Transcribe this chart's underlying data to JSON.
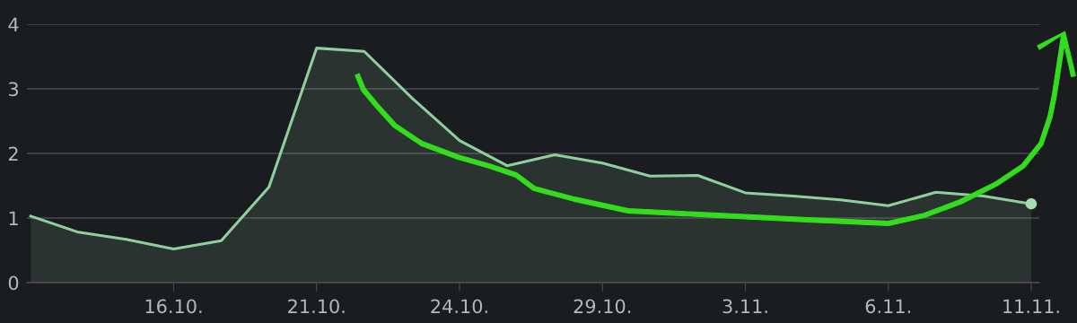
{
  "chart_data": {
    "type": "area",
    "categories": [
      null,
      null,
      null,
      "16.10.",
      null,
      null,
      "21.10.",
      null,
      null,
      "24.10.",
      null,
      null,
      "29.10.",
      null,
      null,
      "3.11.",
      null,
      null,
      "6.11.",
      null,
      null,
      "11.11."
    ],
    "series": [
      {
        "color": "#8fcf9c",
        "values": [
          1.03,
          0.78,
          0.67,
          0.52,
          0.65,
          1.48,
          3.63,
          3.58,
          2.86,
          2.2,
          1.81,
          1.98,
          1.85,
          1.65,
          1.66,
          1.39,
          1.34,
          1.28,
          1.19,
          1.4,
          1.34,
          1.22
        ]
      },
      {
        "type": "scatter",
        "color": "#a6dcb0",
        "marker": "circle",
        "x": [
          "11.11."
        ],
        "values": [
          1.22
        ]
      }
    ],
    "ylim": [
      0,
      4
    ],
    "yticks": [
      0,
      1,
      2,
      3,
      4
    ],
    "grid": "y",
    "legend": false
  }
}
